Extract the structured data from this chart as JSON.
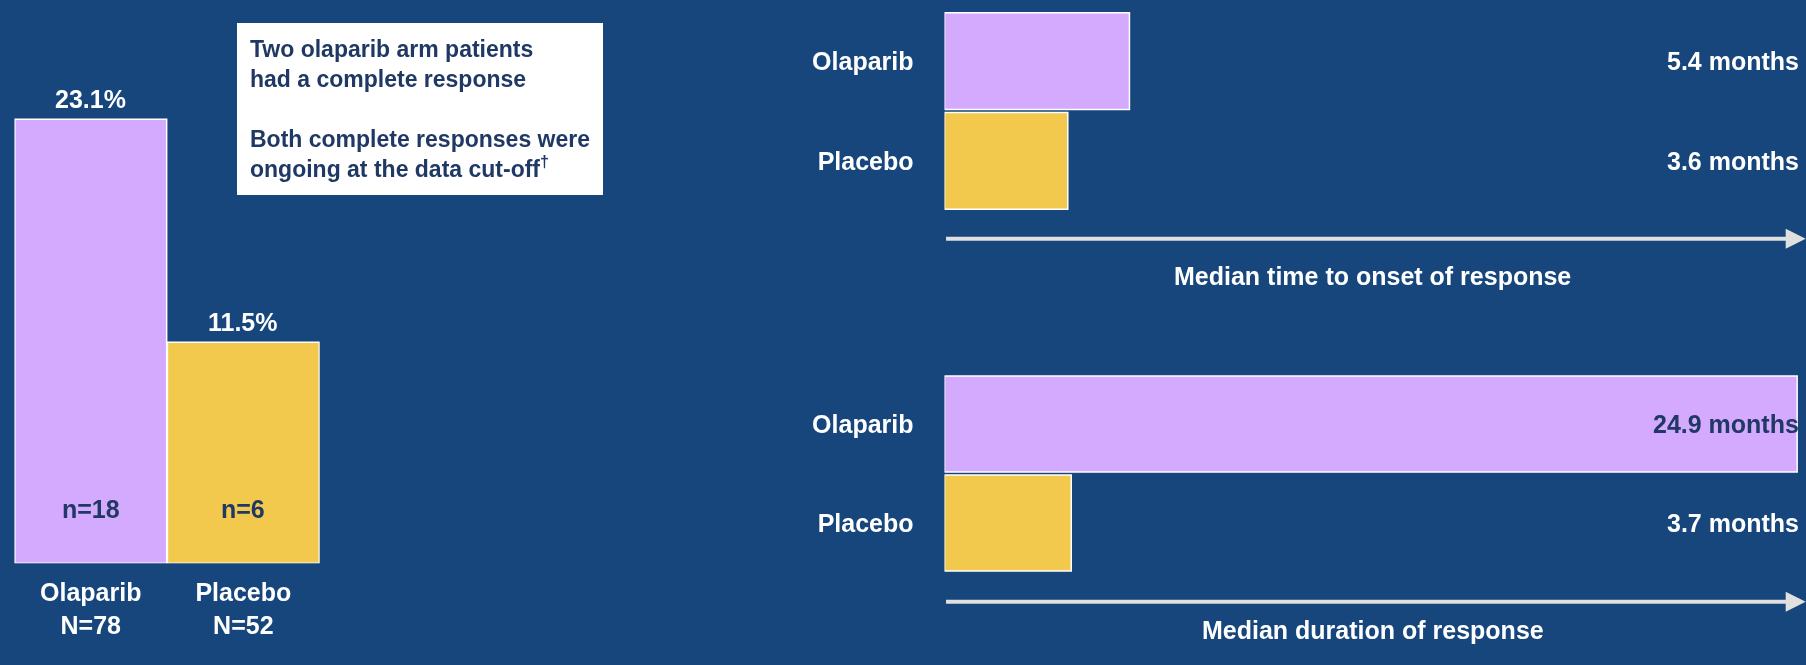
{
  "chart_data": [
    {
      "type": "bar",
      "categories": [
        "Olaparib\nN=78",
        "Placebo\nN=52"
      ],
      "values": [
        23.1,
        11.5
      ],
      "colors": [
        "#d4aaff",
        "#f2c94c"
      ],
      "value_labels": [
        "23.1%",
        "11.5%"
      ],
      "tick_labels": "x",
      "annotations": [
        "n=18",
        "n=6",
        "Two olaparib arm patients\nhad a complete response",
        "Both complete responses were\nongoing at the data cut-off$^{†}$"
      ]
    },
    {
      "type": "bar",
      "orientation": "horizontal",
      "categories": [
        "Olaparib",
        "Placebo"
      ],
      "values": [
        5.4,
        3.6
      ],
      "colors": [
        "#d4aaff",
        "#f2c94c"
      ],
      "value_labels": [
        "5.4 months",
        "3.6 months"
      ],
      "xlim": [
        0,
        25
      ],
      "tick_labels": "y",
      "xlabel": "Median time to onset of response"
    },
    {
      "type": "bar",
      "orientation": "horizontal",
      "categories": [
        "Olaparib",
        "Placebo"
      ],
      "values": [
        24.9,
        3.7
      ],
      "colors": [
        "#d4aaff",
        "#f2c94c"
      ],
      "value_labels": [
        "24.9 months",
        "3.7 months"
      ],
      "xlim": [
        0,
        25
      ],
      "tick_labels": "y",
      "xlabel": "Median duration of response"
    }
  ]
}
